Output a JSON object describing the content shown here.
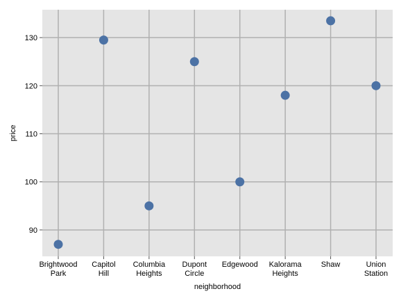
{
  "chart_data": {
    "type": "scatter",
    "title": "",
    "xlabel": "neighborhood",
    "ylabel": "price",
    "categories": [
      [
        "Brightwood",
        "Park"
      ],
      [
        "Capitol",
        "Hill"
      ],
      [
        "Columbia",
        "Heights"
      ],
      [
        "Dupont",
        "Circle"
      ],
      [
        "Edgewood"
      ],
      [
        "Kalorama",
        "Heights"
      ],
      [
        "Shaw"
      ],
      [
        "Union",
        "Station"
      ]
    ],
    "series": [
      {
        "values": [
          87,
          129.5,
          95,
          125,
          100,
          118,
          133.5,
          120
        ]
      }
    ],
    "yticks": [
      90,
      100,
      110,
      120,
      130
    ],
    "ylim": [
      84.5,
      135.8
    ],
    "grid": true,
    "legend": "none",
    "colors": {
      "background": "#e5e5e5",
      "grid": "#b0b0b0",
      "marker": "#4c72a5"
    }
  }
}
